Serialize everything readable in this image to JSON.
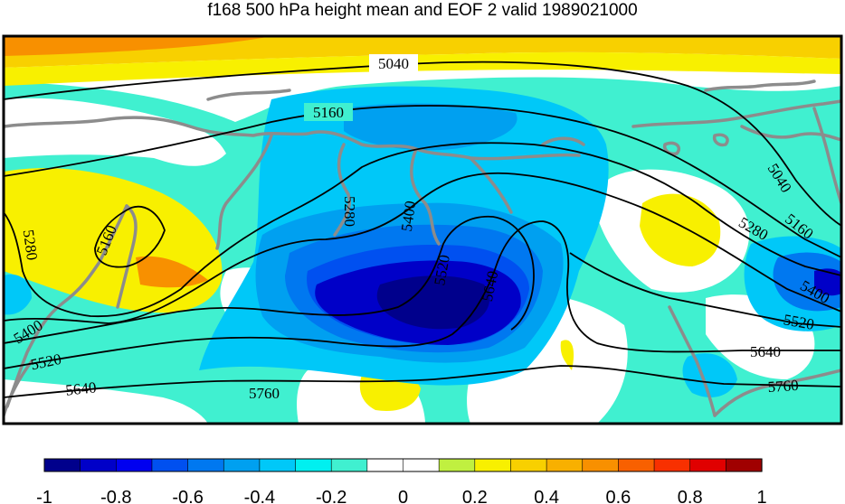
{
  "title": "f168 500 hPa height mean and EOF 2 valid 1989021000",
  "colorbar": {
    "ticks": [
      "-1",
      "-0.8",
      "-0.6",
      "-0.4",
      "-0.2",
      "0",
      "0.2",
      "0.4",
      "0.6",
      "0.8",
      "1"
    ],
    "colors": [
      "#00008c",
      "#0000c8",
      "#0000f0",
      "#0050f0",
      "#0078f0",
      "#00a0f0",
      "#00c8f8",
      "#00f0f0",
      "#40f0d0",
      "#ffffff",
      "#ffffff",
      "#c0f040",
      "#f8f000",
      "#f8d000",
      "#f8b000",
      "#f89000",
      "#f86000",
      "#f83000",
      "#e00000",
      "#a00000"
    ]
  },
  "contours": {
    "c5040": "5040",
    "c5040b": "5040",
    "c5160": "5160",
    "c5160b": "5160",
    "c5160c": "5160",
    "c5280": "5280",
    "c5280b": "5280",
    "c5280c": "5280",
    "c5400": "5400",
    "c5400b": "5400",
    "c5400c": "5400",
    "c5520": "5520",
    "c5520b": "5520",
    "c5520c": "5520",
    "c5640": "5640",
    "c5640b": "5640",
    "c5640c": "5640",
    "c5760": "5760",
    "c5760b": "5760"
  }
}
